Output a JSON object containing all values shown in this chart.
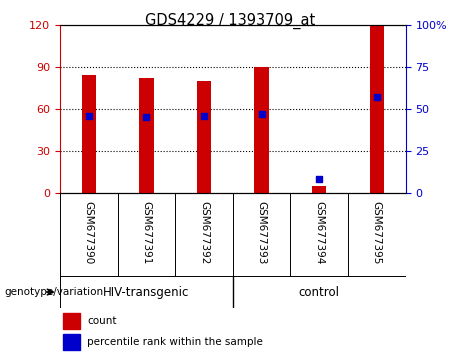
{
  "title": "GDS4229 / 1393709_at",
  "categories": [
    "GSM677390",
    "GSM677391",
    "GSM677392",
    "GSM677393",
    "GSM677394",
    "GSM677395"
  ],
  "red_values": [
    84,
    82,
    80,
    90,
    5,
    120
  ],
  "blue_values": [
    46,
    45,
    46,
    47,
    8,
    57
  ],
  "left_ylim": [
    0,
    120
  ],
  "right_ylim": [
    0,
    100
  ],
  "left_yticks": [
    0,
    30,
    60,
    90,
    120
  ],
  "right_yticks": [
    0,
    25,
    50,
    75,
    100
  ],
  "right_yticklabels": [
    "0",
    "25",
    "50",
    "75",
    "100%"
  ],
  "left_tick_color": "#cc0000",
  "right_tick_color": "#0000cc",
  "bar_color": "#cc0000",
  "blue_color": "#0000cc",
  "group_label": "genotype/variation",
  "hiv_label": "HIV-transgenic",
  "control_label": "control",
  "legend_items": [
    {
      "label": "count",
      "color": "#cc0000"
    },
    {
      "label": "percentile rank within the sample",
      "color": "#0000cc"
    }
  ],
  "bg_color": "#ffffff",
  "label_area_color": "#c8c8c8",
  "group_area_color": "#90ee90"
}
